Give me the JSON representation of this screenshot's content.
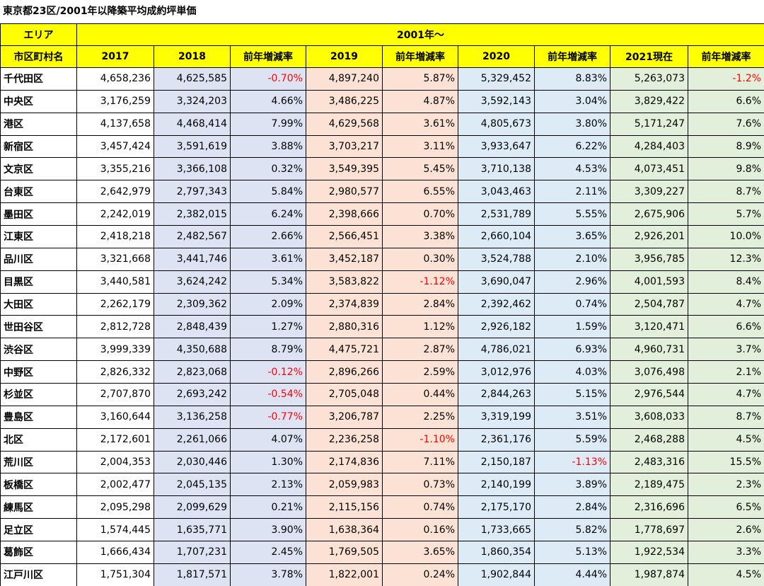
{
  "title": "東京都23区/2001年以降築平均成約坪単価",
  "table": {
    "header": [
      [
        "エリア",
        "2001年～"
      ],
      [
        "市区町村名",
        "2017",
        "2018",
        "前年増減率",
        "2019",
        "前年増減率",
        "2020",
        "前年増減率",
        "2021現在",
        "前年増減率"
      ]
    ],
    "rows": [
      [
        "千代田区",
        "4,658,236",
        "4,625,585",
        "-0.70%",
        "4,897,240",
        "5.87%",
        "5,329,452",
        "8.83%",
        "5,263,073",
        "-1.2%"
      ],
      [
        "中央区",
        "3,176,259",
        "3,324,203",
        "4.66%",
        "3,486,225",
        "4.87%",
        "3,592,143",
        "3.04%",
        "3,829,422",
        "6.6%"
      ],
      [
        "港区",
        "4,137,658",
        "4,468,414",
        "7.99%",
        "4,629,568",
        "3.61%",
        "4,805,673",
        "3.80%",
        "5,171,247",
        "7.6%"
      ],
      [
        "新宿区",
        "3,457,424",
        "3,591,619",
        "3.88%",
        "3,703,217",
        "3.11%",
        "3,933,647",
        "6.22%",
        "4,284,403",
        "8.9%"
      ],
      [
        "文京区",
        "3,355,216",
        "3,366,108",
        "0.32%",
        "3,549,395",
        "5.45%",
        "3,710,138",
        "4.53%",
        "4,073,451",
        "9.8%"
      ],
      [
        "台東区",
        "2,642,979",
        "2,797,343",
        "5.84%",
        "2,980,577",
        "6.55%",
        "3,043,463",
        "2.11%",
        "3,309,227",
        "8.7%"
      ],
      [
        "墨田区",
        "2,242,019",
        "2,382,015",
        "6.24%",
        "2,398,666",
        "0.70%",
        "2,531,789",
        "5.55%",
        "2,675,906",
        "5.7%"
      ],
      [
        "江東区",
        "2,418,218",
        "2,482,567",
        "2.66%",
        "2,566,451",
        "3.38%",
        "2,660,104",
        "3.65%",
        "2,926,201",
        "10.0%"
      ],
      [
        "品川区",
        "3,321,668",
        "3,441,746",
        "3.61%",
        "3,452,187",
        "0.30%",
        "3,524,788",
        "2.10%",
        "3,956,785",
        "12.3%"
      ],
      [
        "目黒区",
        "3,440,581",
        "3,624,242",
        "5.34%",
        "3,583,822",
        "-1.12%",
        "3,690,047",
        "2.96%",
        "4,001,593",
        "8.4%"
      ],
      [
        "大田区",
        "2,262,179",
        "2,309,362",
        "2.09%",
        "2,374,839",
        "2.84%",
        "2,392,462",
        "0.74%",
        "2,504,787",
        "4.7%"
      ],
      [
        "世田谷区",
        "2,812,728",
        "2,848,439",
        "1.27%",
        "2,880,316",
        "1.12%",
        "2,926,182",
        "1.59%",
        "3,120,471",
        "6.6%"
      ],
      [
        "渋谷区",
        "3,999,339",
        "4,350,688",
        "8.79%",
        "4,475,721",
        "2.87%",
        "4,786,021",
        "6.93%",
        "4,960,731",
        "3.7%"
      ],
      [
        "中野区",
        "2,826,332",
        "2,823,068",
        "-0.12%",
        "2,896,266",
        "2.59%",
        "3,012,976",
        "4.03%",
        "3,076,498",
        "2.1%"
      ],
      [
        "杉並区",
        "2,707,870",
        "2,693,242",
        "-0.54%",
        "2,705,048",
        "0.44%",
        "2,844,263",
        "5.15%",
        "2,976,544",
        "4.7%"
      ],
      [
        "豊島区",
        "3,160,644",
        "3,136,258",
        "-0.77%",
        "3,206,787",
        "2.25%",
        "3,319,199",
        "3.51%",
        "3,608,033",
        "8.7%"
      ],
      [
        "北区",
        "2,172,601",
        "2,261,066",
        "4.07%",
        "2,236,258",
        "-1.10%",
        "2,361,176",
        "5.59%",
        "2,468,288",
        "4.5%"
      ],
      [
        "荒川区",
        "2,004,353",
        "2,030,446",
        "1.30%",
        "2,174,836",
        "7.11%",
        "2,150,187",
        "-1.13%",
        "2,483,316",
        "15.5%"
      ],
      [
        "板橋区",
        "2,002,477",
        "2,045,135",
        "2.13%",
        "2,059,983",
        "0.73%",
        "2,140,199",
        "3.89%",
        "2,189,475",
        "2.3%"
      ],
      [
        "練馬区",
        "2,095,298",
        "2,099,629",
        "0.21%",
        "2,115,156",
        "0.74%",
        "2,175,170",
        "2.84%",
        "2,316,696",
        "6.5%"
      ],
      [
        "足立区",
        "1,574,445",
        "1,635,771",
        "3.90%",
        "1,638,364",
        "0.16%",
        "1,733,665",
        "5.82%",
        "1,778,697",
        "2.6%"
      ],
      [
        "葛飾区",
        "1,666,434",
        "1,707,231",
        "2.45%",
        "1,769,505",
        "3.65%",
        "1,860,354",
        "5.13%",
        "1,922,534",
        "3.3%"
      ],
      [
        "江戸川区",
        "1,751,304",
        "1,817,571",
        "3.78%",
        "1,822,001",
        "0.24%",
        "1,902,844",
        "4.44%",
        "1,987,874",
        "4.5%"
      ]
    ]
  }
}
